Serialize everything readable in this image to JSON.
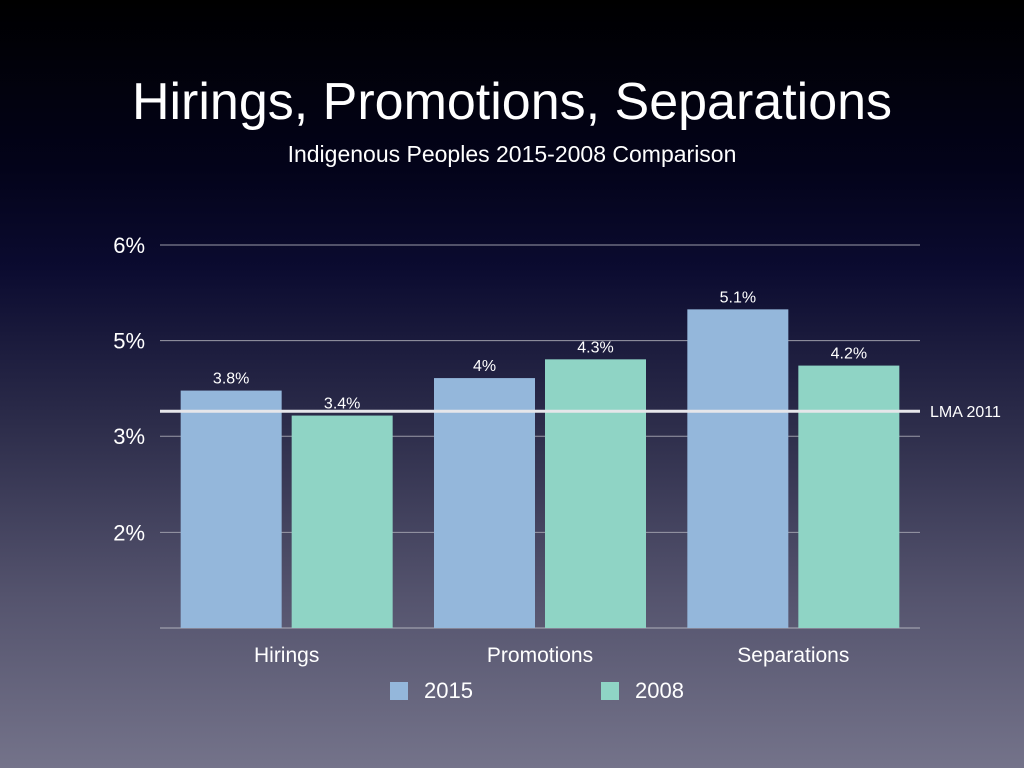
{
  "chart_data": {
    "type": "bar",
    "title": "Hirings, Promotions, Separations",
    "subtitle": "Indigenous Peoples 2015-2008 Comparison",
    "categories": [
      "Hirings",
      "Promotions",
      "Separations"
    ],
    "series": [
      {
        "name": "2015",
        "color": "#94b7db",
        "values": [
          3.8,
          4.0,
          5.1
        ],
        "labels": [
          "3.8%",
          "4%",
          "5.1%"
        ]
      },
      {
        "name": "2008",
        "color": "#8fd4c5",
        "values": [
          3.4,
          4.3,
          4.2
        ],
        "labels": [
          "3.4%",
          "4.3%",
          "4.2%"
        ]
      }
    ],
    "ylim": [
      0,
      6.13
    ],
    "yticks": [
      {
        "value": 1.53,
        "label": "2%"
      },
      {
        "value": 3.07,
        "label": "3%"
      },
      {
        "value": 4.6,
        "label": "5%"
      },
      {
        "value": 6.13,
        "label": "6%"
      }
    ],
    "reference_line": {
      "label": "LMA 2011",
      "value": 3.47
    },
    "grid": true,
    "legend_position": "bottom"
  }
}
